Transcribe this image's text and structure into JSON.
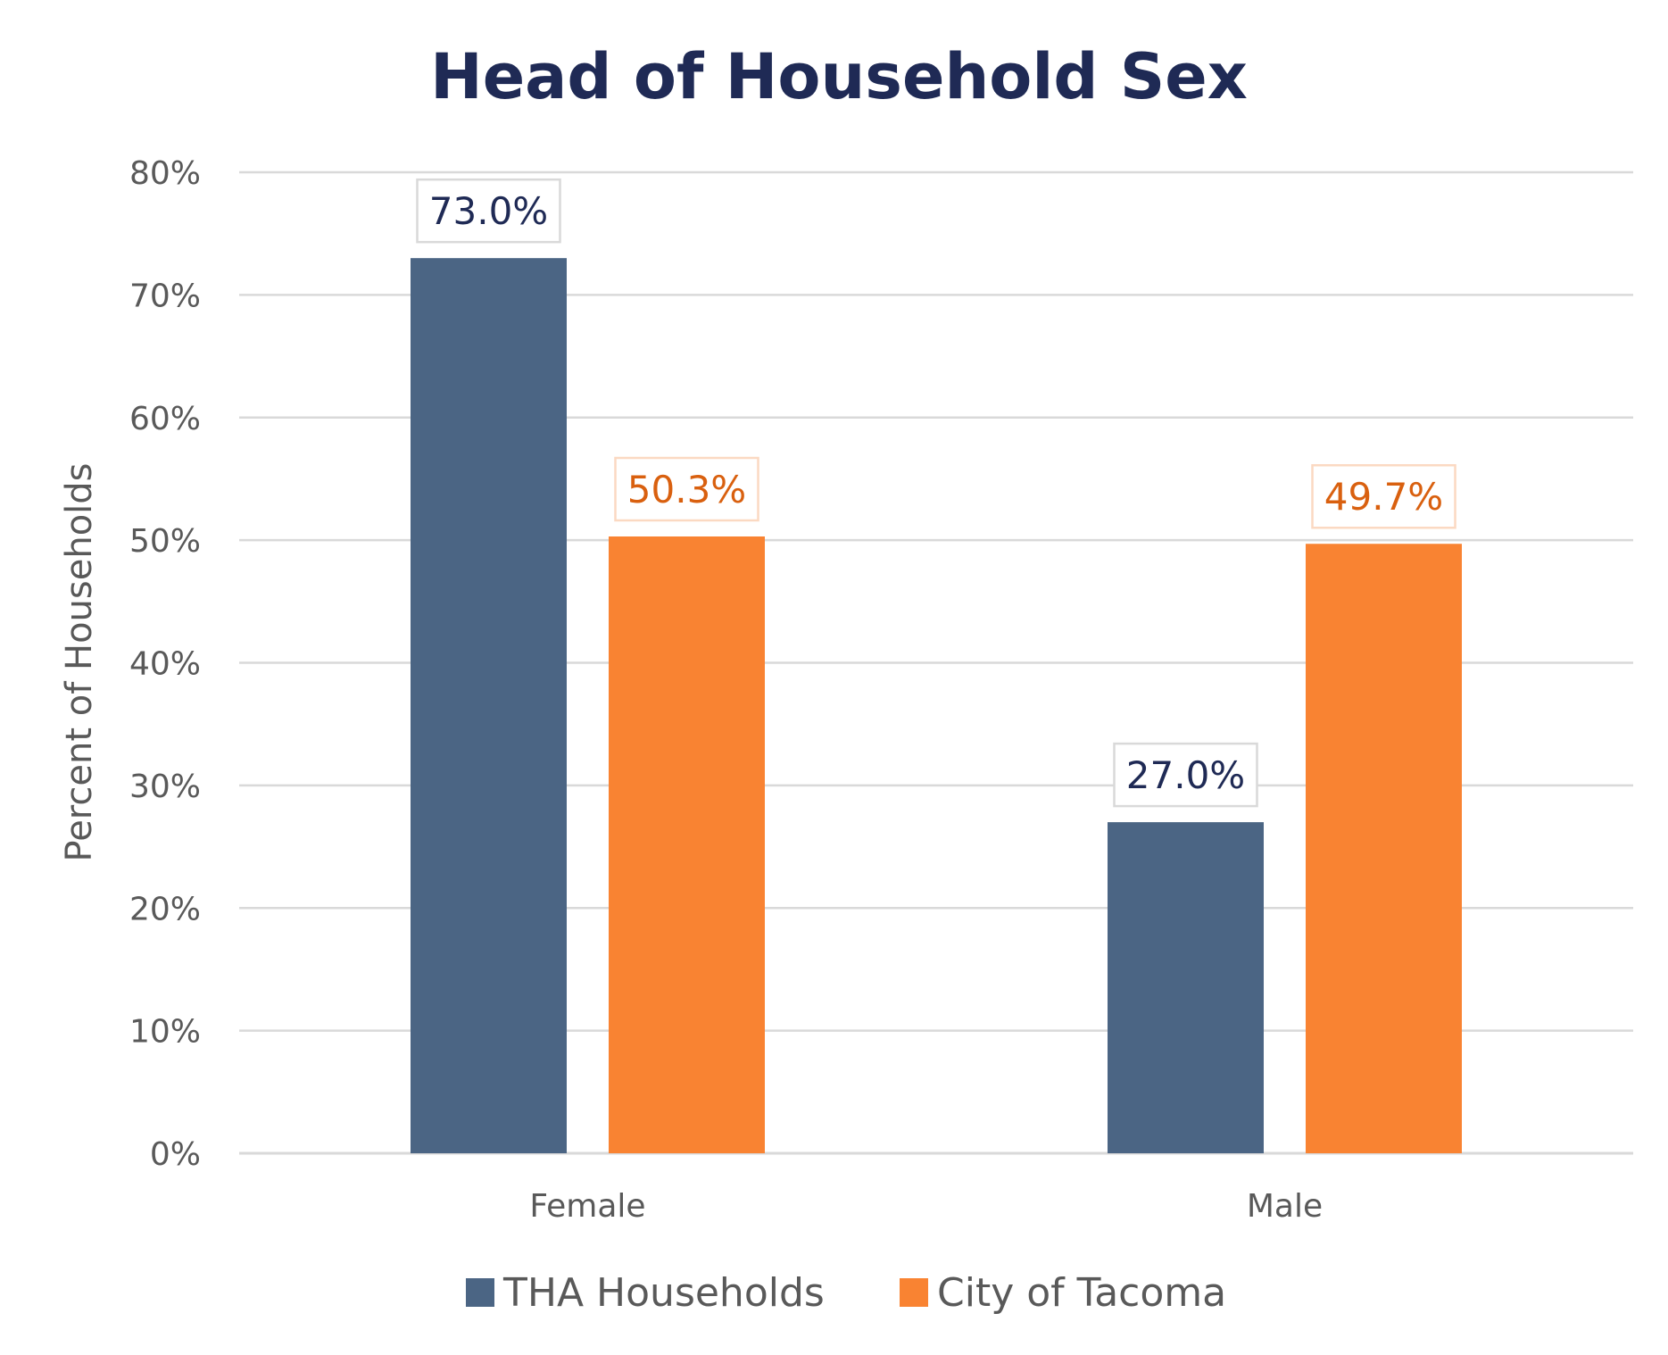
{
  "chart_data": {
    "type": "bar",
    "title": "Head of Household Sex",
    "xlabel": "",
    "ylabel": "Percent of Households",
    "categories": [
      "Female",
      "Male"
    ],
    "series": [
      {
        "name": "THA Households",
        "color": "#4b6584",
        "label_color": "#1f2a55",
        "label_border": "#d9d9d9",
        "values": [
          73.0,
          27.0
        ],
        "labels": [
          "73.0%",
          "27.0%"
        ]
      },
      {
        "name": "City of Tacoma",
        "color": "#f98332",
        "label_color": "#d9600f",
        "label_border": "#fbd9c2",
        "values": [
          50.3,
          49.7
        ],
        "labels": [
          "50.3%",
          "49.7%"
        ]
      }
    ],
    "ylim": [
      0,
      80
    ],
    "yticks": [
      0,
      10,
      20,
      30,
      40,
      50,
      60,
      70,
      80
    ],
    "ytick_labels": [
      "0%",
      "10%",
      "20%",
      "30%",
      "40%",
      "50%",
      "60%",
      "70%",
      "80%"
    ],
    "grid": true,
    "grid_color": "#d9d9d9",
    "legend_position": "bottom"
  }
}
